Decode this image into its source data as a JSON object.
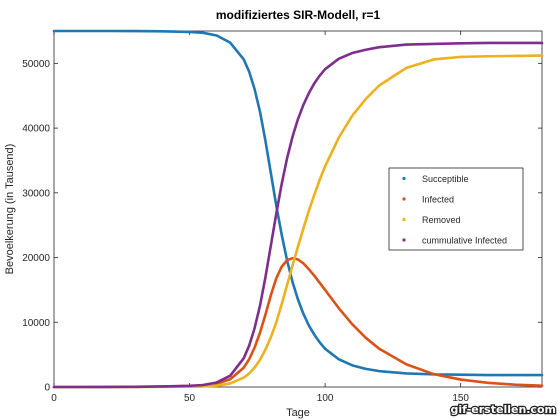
{
  "chart_data": {
    "type": "line",
    "title": "modifiziertes SIR-Modell, r=1",
    "xlabel": "Tage",
    "ylabel": "Bevoelkerung (in Tausend)",
    "xlim": [
      0,
      180
    ],
    "ylim": [
      0,
      55000
    ],
    "x_ticks": [
      0,
      50,
      100,
      150
    ],
    "y_ticks": [
      0,
      10000,
      20000,
      30000,
      40000,
      50000
    ],
    "grid": false,
    "legend_position": "right",
    "x": [
      0,
      10,
      20,
      30,
      40,
      50,
      55,
      60,
      65,
      70,
      72,
      74,
      76,
      78,
      80,
      82,
      84,
      86,
      88,
      90,
      92,
      94,
      96,
      98,
      100,
      105,
      110,
      115,
      120,
      130,
      140,
      150,
      160,
      170,
      180
    ],
    "series": [
      {
        "name": "Succeptible",
        "color": "#1f77b4",
        "values": [
          55000,
          55000,
          55000,
          54990,
          54950,
          54850,
          54720,
          54300,
          53200,
          50600,
          48700,
          46000,
          42500,
          38000,
          33000,
          28000,
          23500,
          19500,
          16200,
          13500,
          11300,
          9500,
          8100,
          6900,
          5900,
          4300,
          3350,
          2800,
          2450,
          2100,
          1950,
          1900,
          1850,
          1850,
          1850
        ]
      },
      {
        "name": "Infected",
        "color": "#d95319",
        "values": [
          0,
          2,
          10,
          30,
          70,
          140,
          230,
          500,
          1200,
          3000,
          4300,
          6100,
          8400,
          11200,
          14200,
          16800,
          18600,
          19600,
          19900,
          19700,
          19100,
          18200,
          17200,
          16100,
          15000,
          12200,
          9700,
          7600,
          5900,
          3500,
          2000,
          1150,
          650,
          350,
          200
        ]
      },
      {
        "name": "Removed",
        "color": "#edb120",
        "values": [
          0,
          0,
          0,
          5,
          20,
          50,
          80,
          200,
          550,
          1450,
          2100,
          3000,
          4200,
          5800,
          7700,
          10000,
          12800,
          15800,
          18800,
          21700,
          24500,
          27200,
          29700,
          32000,
          34100,
          38500,
          41900,
          44500,
          46600,
          49300,
          50600,
          51000,
          51100,
          51150,
          51200
        ]
      },
      {
        "name": "cummulative Infected",
        "color": "#7e2f8e",
        "values": [
          0,
          2,
          10,
          35,
          90,
          190,
          310,
          700,
          1750,
          4450,
          6400,
          9100,
          12600,
          17000,
          21900,
          26800,
          31400,
          35400,
          38700,
          41400,
          43600,
          45400,
          46900,
          48100,
          49100,
          50700,
          51600,
          52100,
          52500,
          52900,
          53000,
          53100,
          53150,
          53150,
          53150
        ]
      }
    ]
  },
  "watermark": {
    "text": "gif-erstellen.com"
  }
}
